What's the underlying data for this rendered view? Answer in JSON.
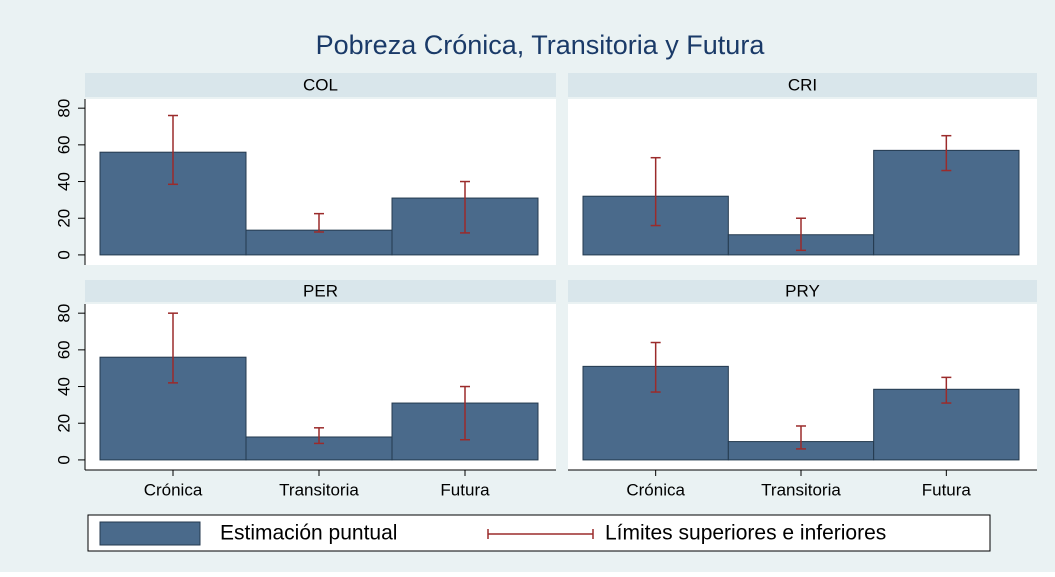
{
  "chart_data": {
    "type": "bar",
    "title": "Pobreza Crónica, Transitoria y Futura",
    "categories": [
      "Crónica",
      "Transitoria",
      "Futura"
    ],
    "series": [
      {
        "name": "Estimación puntual",
        "color": "#4a6a8b"
      },
      {
        "name": "Límites superiores e inferiores",
        "color": "#9b2b2b"
      }
    ],
    "ylim": [
      -5.5,
      85
    ],
    "yticks": [
      0,
      20,
      40,
      60,
      80
    ],
    "panels": [
      {
        "title": "COL",
        "values": [
          56,
          13.5,
          31
        ],
        "lower": [
          38.5,
          12.5,
          12
        ],
        "upper": [
          76,
          22.5,
          40
        ]
      },
      {
        "title": "CRI",
        "values": [
          32,
          11,
          57
        ],
        "lower": [
          16,
          2.5,
          46
        ],
        "upper": [
          53,
          20,
          65
        ]
      },
      {
        "title": "PER",
        "values": [
          56,
          12.5,
          31
        ],
        "lower": [
          42,
          9,
          11
        ],
        "upper": [
          80,
          17.5,
          40
        ]
      },
      {
        "title": "PRY",
        "values": [
          51,
          10,
          38.5
        ],
        "lower": [
          37,
          6,
          31
        ],
        "upper": [
          64,
          18.5,
          45
        ]
      }
    ]
  }
}
